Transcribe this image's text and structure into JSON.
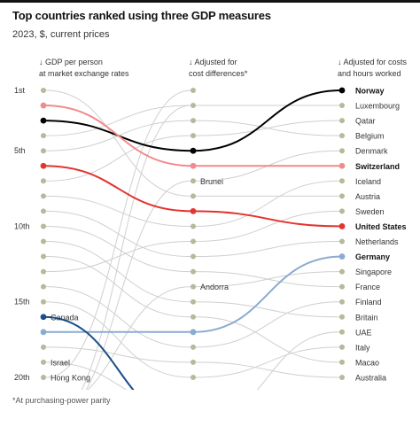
{
  "header": {
    "title": "Top countries ranked using three GDP measures",
    "subtitle": "2023, $, current prices"
  },
  "footnote": "*At purchasing-power parity",
  "chart_data": {
    "type": "slope",
    "columns": [
      {
        "line1": "↓ GDP per person",
        "line2": "at market exchange rates"
      },
      {
        "line1": "↓ Adjusted for",
        "line2": "cost differences*"
      },
      {
        "line1": "↓ Adjusted for costs",
        "line2": "and hours worked"
      }
    ],
    "rank_labels": [
      {
        "rank": 1,
        "label": "1st"
      },
      {
        "rank": 5,
        "label": "5th"
      },
      {
        "rank": 10,
        "label": "10th"
      },
      {
        "rank": 15,
        "label": "15th"
      },
      {
        "rank": 20,
        "label": "20th"
      }
    ],
    "max_rank": 20,
    "right_labels": [
      "Norway",
      "Luxembourg",
      "Qatar",
      "Belgium",
      "Denmark",
      "Switzerland",
      "Iceland",
      "Austria",
      "Sweden",
      "United States",
      "Netherlands",
      "Germany",
      "Singapore",
      "France",
      "Finland",
      "Britain",
      "UAE",
      "Italy",
      "Macao",
      "Australia"
    ],
    "left_labels": [
      {
        "rank": 16,
        "name": "Canada"
      },
      {
        "rank": 19,
        "name": "Israel"
      },
      {
        "rank": 20,
        "name": "Hong Kong"
      }
    ],
    "middle_labels": [
      {
        "rank": 7,
        "name": "Brunei"
      },
      {
        "rank": 14,
        "name": "Andorra"
      }
    ],
    "highlighted": [
      {
        "name": "Norway",
        "ranks": [
          3,
          5,
          1
        ],
        "color": "#000000"
      },
      {
        "name": "Switzerland",
        "ranks": [
          2,
          6,
          6
        ],
        "color": "#f28b8b"
      },
      {
        "name": "United States",
        "ranks": [
          6,
          9,
          10
        ],
        "color": "#e3342f"
      },
      {
        "name": "Germany",
        "ranks": [
          17,
          17,
          12
        ],
        "color": "#8cabd0"
      },
      {
        "name": "Canada",
        "ranks": [
          16,
          23,
          null
        ],
        "color": "#1a4e8a"
      }
    ],
    "grey_links": [
      {
        "from": 1,
        "to": 8
      },
      {
        "from": 4,
        "to": 2
      },
      {
        "from": 5,
        "to": 3
      },
      {
        "from": 7,
        "to": 4
      },
      {
        "from": 8,
        "to": 10
      },
      {
        "from": 9,
        "to": 12
      },
      {
        "from": 10,
        "to": 13
      },
      {
        "from": 11,
        "to": 15
      },
      {
        "from": 12,
        "to": 16
      },
      {
        "from": 13,
        "to": 11
      },
      {
        "from": 14,
        "to": 18
      },
      {
        "from": 15,
        "to": 20
      },
      {
        "from": 18,
        "to": 19
      },
      {
        "from": 19,
        "to": 22
      },
      {
        "from": 20,
        "to": 1
      },
      {
        "from": 22,
        "to": 14
      },
      {
        "from": 23,
        "to": 7
      },
      {
        "from": 24,
        "to": 2
      },
      {
        "from": 2,
        "to": 2
      },
      {
        "from": 3,
        "to": 4
      },
      {
        "from": 4,
        "to": 3
      },
      {
        "from": 7,
        "to": 5
      },
      {
        "from": 8,
        "to": 8
      },
      {
        "from": 10,
        "to": 7
      },
      {
        "from": 11,
        "to": 9
      },
      {
        "from": 12,
        "to": 11
      },
      {
        "from": 13,
        "to": 14
      },
      {
        "from": 14,
        "to": 13
      },
      {
        "from": 15,
        "to": 16
      },
      {
        "from": 16,
        "to": 19
      },
      {
        "from": 18,
        "to": 15
      },
      {
        "from": 19,
        "to": 20
      },
      {
        "from": 20,
        "to": 18
      },
      {
        "from": 24,
        "to": 17
      }
    ],
    "grey_link_stages": [
      18,
      16
    ]
  }
}
